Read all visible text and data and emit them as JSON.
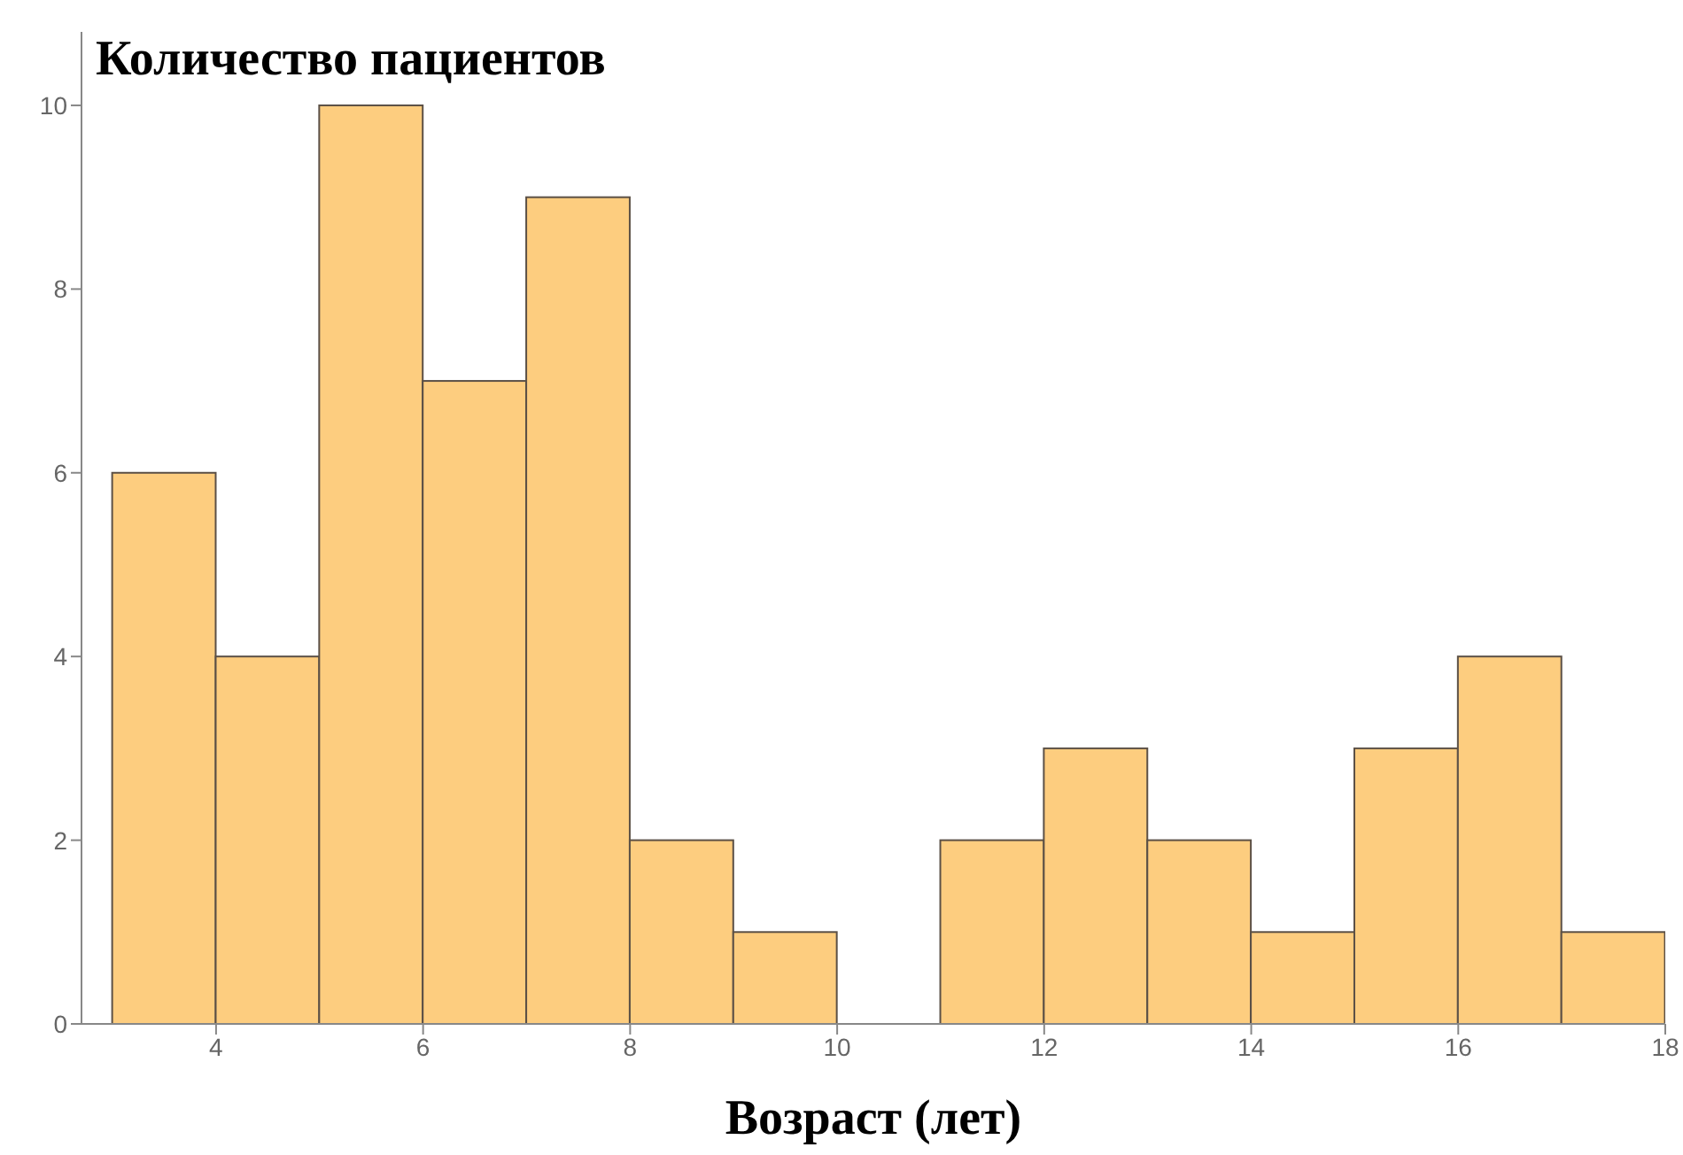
{
  "chart_data": {
    "type": "histogram",
    "title": "Количество пациентов",
    "xlabel": "Возраст (лет)",
    "bins": [
      3,
      4,
      5,
      6,
      7,
      8,
      9,
      10,
      11,
      12,
      13,
      14,
      15,
      16,
      17,
      18
    ],
    "values": [
      6,
      4,
      10,
      7,
      9,
      2,
      1,
      0,
      2,
      3,
      2,
      1,
      3,
      4,
      1
    ],
    "color": "#fdcd7f",
    "xlim": [
      2.7,
      18
    ],
    "xticks": [
      4,
      6,
      8,
      10,
      12,
      14,
      16,
      18
    ],
    "ylim": [
      0,
      10.8
    ],
    "yticks": [
      0,
      2,
      4,
      6,
      8,
      10
    ],
    "grid": false
  }
}
